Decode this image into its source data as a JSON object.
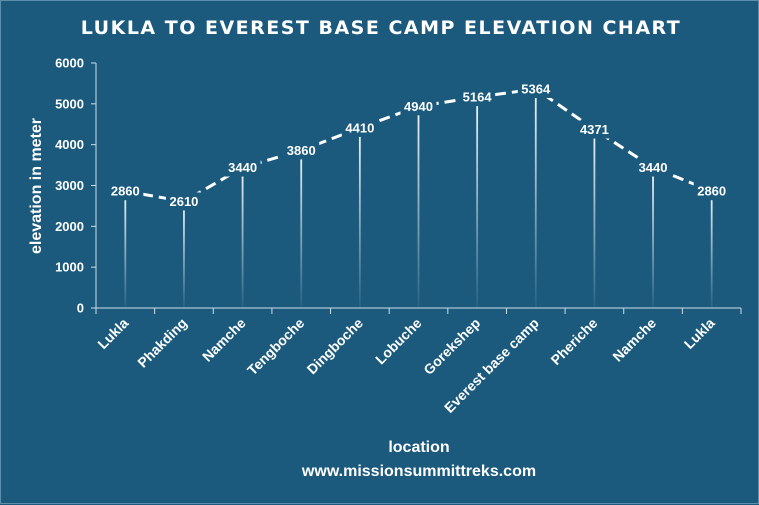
{
  "chart_data": {
    "type": "line",
    "title": "LUKLA TO EVEREST BASE CAMP ELEVATION CHART",
    "xlabel": "location",
    "ylabel": "elevation in meter",
    "categories": [
      "Lukla",
      "Phakding",
      "Namche",
      "Tengboche",
      "Dingboche",
      "Lobuche",
      "Gorekshep",
      "Everest base camp",
      "Pheriche",
      "Namche",
      "Lukla"
    ],
    "values": [
      2860,
      2610,
      3440,
      3860,
      4410,
      4940,
      5164,
      5364,
      4371,
      3440,
      2860
    ],
    "ylim": [
      0,
      6000
    ],
    "yticks": [
      0,
      1000,
      2000,
      3000,
      4000,
      5000,
      6000
    ],
    "line_style": "dashed",
    "drop_lines": true,
    "data_labels": true
  },
  "footer": {
    "website": "www.missionsummittreks.com"
  },
  "colors": {
    "background": "#1b5a7d",
    "line": "#ffffff"
  }
}
